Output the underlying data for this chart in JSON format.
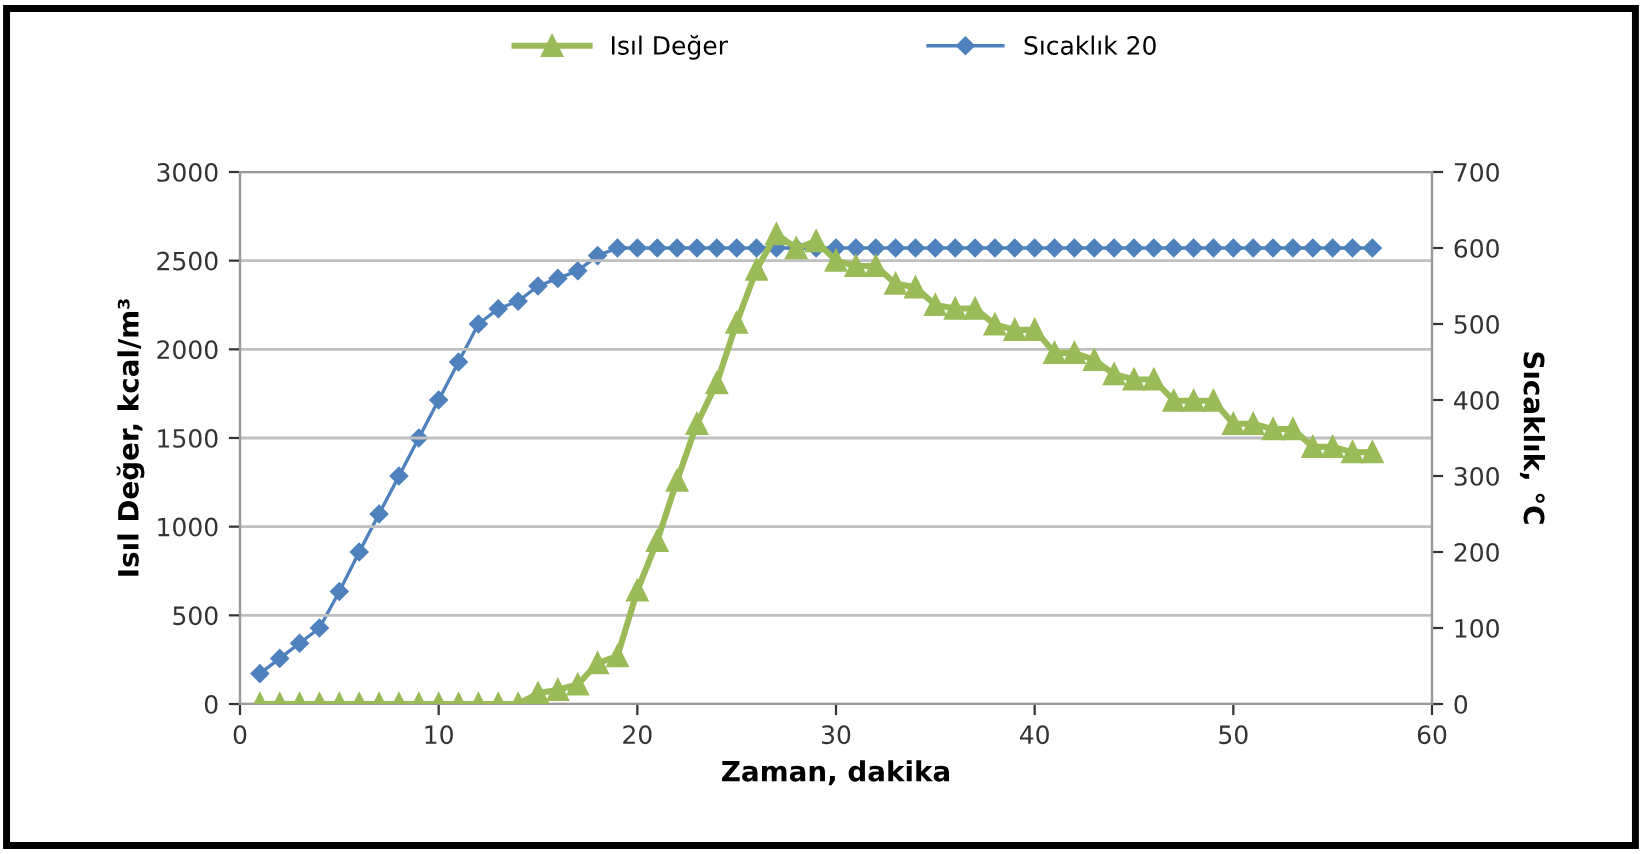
{
  "chart_data": {
    "type": "line",
    "xlabel": "Zaman, dakika",
    "ylabel": "Isıl Değer, kcal/m³",
    "y2label": "Sıcaklık, °C",
    "xlim": [
      0,
      60
    ],
    "xticks": [
      0,
      10,
      20,
      30,
      40,
      50,
      60
    ],
    "ylim": [
      0,
      3000
    ],
    "yticks": [
      0,
      500,
      1000,
      1500,
      2000,
      2500,
      3000
    ],
    "y2lim": [
      0,
      700
    ],
    "y2ticks": [
      0,
      100,
      200,
      300,
      400,
      500,
      600,
      700
    ],
    "grid": "y",
    "legend": "top",
    "series": [
      {
        "name": "Isıl Değer",
        "color": "#9bbb59",
        "marker": "triangle",
        "x": [
          1,
          2,
          3,
          4,
          5,
          6,
          7,
          8,
          9,
          10,
          11,
          12,
          13,
          14,
          15,
          16,
          17,
          18,
          19,
          20,
          21,
          22,
          23,
          24,
          25,
          26,
          27,
          28,
          29,
          30,
          31,
          32,
          33,
          34,
          35,
          36,
          37,
          38,
          39,
          40,
          41,
          42,
          43,
          44,
          45,
          46,
          47,
          48,
          49,
          50,
          51,
          52,
          53,
          54,
          55,
          56,
          57
        ],
        "values": [
          0,
          0,
          0,
          0,
          0,
          0,
          0,
          0,
          0,
          0,
          0,
          0,
          0,
          0,
          60,
          80,
          110,
          230,
          270,
          640,
          920,
          1260,
          1580,
          1810,
          2150,
          2450,
          2650,
          2570,
          2610,
          2500,
          2470,
          2470,
          2370,
          2350,
          2250,
          2230,
          2230,
          2140,
          2110,
          2110,
          1980,
          1980,
          1940,
          1860,
          1830,
          1830,
          1710,
          1710,
          1710,
          1580,
          1580,
          1550,
          1550,
          1450,
          1450,
          1420,
          1420
        ]
      },
      {
        "name": "Sıcaklık 20",
        "color": "#4f81bd",
        "marker": "diamond",
        "axis": "y2",
        "x": [
          1,
          2,
          3,
          4,
          5,
          6,
          7,
          8,
          9,
          10,
          11,
          12,
          13,
          14,
          15,
          16,
          17,
          18,
          19,
          20,
          21,
          22,
          23,
          24,
          25,
          26,
          27,
          28,
          29,
          30,
          31,
          32,
          33,
          34,
          35,
          36,
          37,
          38,
          39,
          40,
          41,
          42,
          43,
          44,
          45,
          46,
          47,
          48,
          49,
          50,
          51,
          52,
          53,
          54,
          55,
          56,
          57
        ],
        "values": [
          40,
          60,
          80,
          100,
          148,
          200,
          250,
          300,
          350,
          400,
          450,
          500,
          520,
          530,
          550,
          560,
          570,
          590,
          600,
          600,
          600,
          600,
          600,
          600,
          600,
          600,
          600,
          600,
          600,
          600,
          600,
          600,
          600,
          600,
          600,
          600,
          600,
          600,
          600,
          600,
          600,
          600,
          600,
          600,
          600,
          600,
          600,
          600,
          600,
          600,
          600,
          600,
          600,
          600,
          600,
          600,
          600
        ]
      }
    ]
  }
}
